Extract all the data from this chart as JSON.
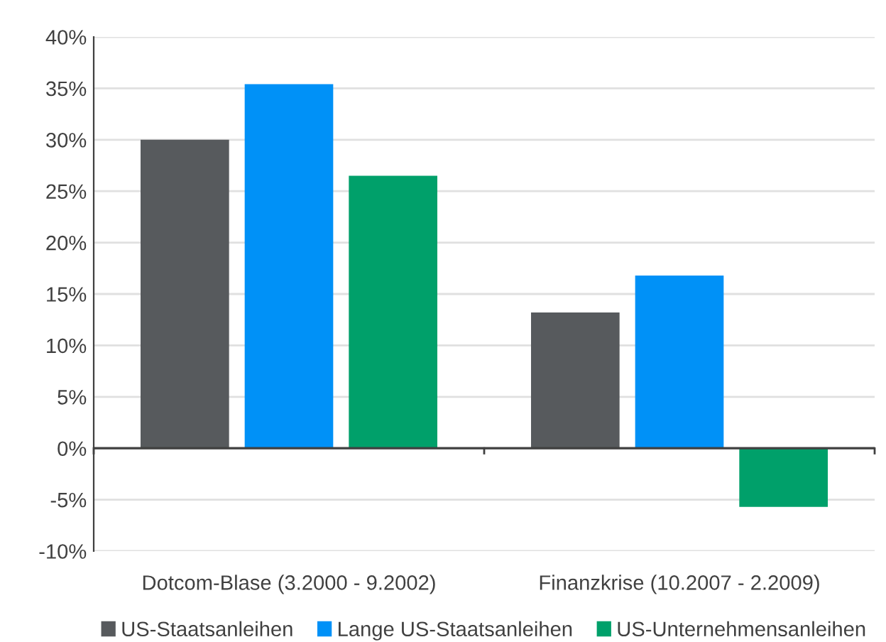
{
  "chart_data": {
    "type": "bar",
    "categories": [
      "Dotcom-Blase (3.2000 - 9.2002)",
      "Finanzkrise (10.2007 - 2.2009)"
    ],
    "series": [
      {
        "name": "US-Staatsanleihen",
        "color": "#575a5d",
        "values": [
          30.0,
          13.2
        ]
      },
      {
        "name": "Lange US-Staatsanleihen",
        "color": "#0091f7",
        "values": [
          35.4,
          16.8
        ]
      },
      {
        "name": "US-Unternehmensanleihen",
        "color": "#00a06a",
        "values": [
          26.5,
          -5.7
        ]
      }
    ],
    "ylim": [
      -10,
      40
    ],
    "yticks": [
      {
        "value": -10,
        "label": "-10%"
      },
      {
        "value": -5,
        "label": "-5%"
      },
      {
        "value": 0,
        "label": "0%"
      },
      {
        "value": 5,
        "label": "5%"
      },
      {
        "value": 10,
        "label": "10%"
      },
      {
        "value": 15,
        "label": "15%"
      },
      {
        "value": 20,
        "label": "20%"
      },
      {
        "value": 25,
        "label": "25%"
      },
      {
        "value": 30,
        "label": "30%"
      },
      {
        "value": 35,
        "label": "35%"
      },
      {
        "value": 40,
        "label": "40%"
      }
    ],
    "grid": "y",
    "legend": "bottom"
  }
}
